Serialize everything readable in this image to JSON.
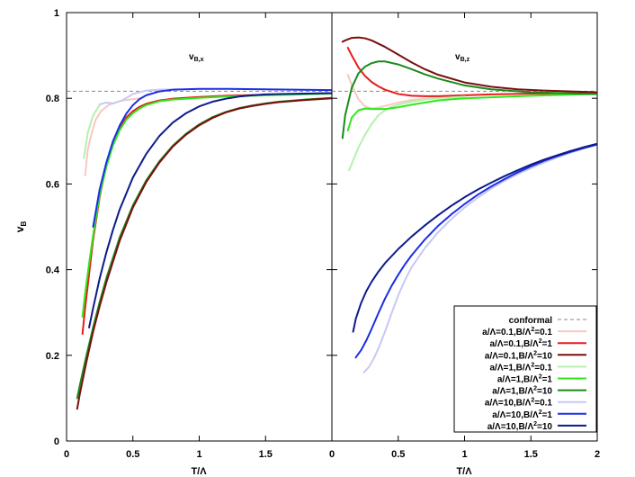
{
  "chart_data": {
    "type": "line",
    "ylabel": "v",
    "ylabel_sub": "B",
    "ylim": [
      0,
      1
    ],
    "yticks": [
      0,
      0.2,
      0.4,
      0.6,
      0.8,
      1
    ],
    "ytick_labels": [
      "0",
      "0.2",
      "0.4",
      "0.6",
      "0.8",
      "1"
    ],
    "conformal_value": 0.8165,
    "legend_position": "bottom-right of right panel",
    "legend": [
      {
        "key": "conformal",
        "label": "conformal",
        "color": "#888888",
        "dashed": true
      },
      {
        "key": "s1",
        "pre": "a/Λ=0.1,B/Λ",
        "post": "=0.1",
        "color": "#f7c8c0"
      },
      {
        "key": "s2",
        "pre": "a/Λ=0.1,B/Λ",
        "post": "=1",
        "color": "#e81c1c"
      },
      {
        "key": "s3",
        "pre": "a/Λ=0.1,B/Λ",
        "post": "=10",
        "color": "#7a0e0e"
      },
      {
        "key": "s4",
        "pre": "a/Λ=1,B/Λ",
        "post": "=0.1",
        "color": "#b6f0b0"
      },
      {
        "key": "s5",
        "pre": "a/Λ=1,B/Λ",
        "post": "=1",
        "color": "#2ee81c"
      },
      {
        "key": "s6",
        "pre": "a/Λ=1,B/Λ",
        "post": "=10",
        "color": "#1a8a1a"
      },
      {
        "key": "s7",
        "pre": "a/Λ=10,B/Λ",
        "post": "=0.1",
        "color": "#c8c8f4"
      },
      {
        "key": "s8",
        "pre": "a/Λ=10,B/Λ",
        "post": "=1",
        "color": "#1c2ee8"
      },
      {
        "key": "s9",
        "pre": "a/Λ=10,B/Λ",
        "post": "=10",
        "color": "#0e1a8a"
      }
    ],
    "panels": [
      {
        "id": "left",
        "title": "v",
        "title_sub": "B,x",
        "xlabel": "T/Λ",
        "xlim": [
          0,
          2
        ],
        "xticks": [
          0,
          0.5,
          1,
          1.5
        ],
        "xtick_labels": [
          "0",
          "0.5",
          "1",
          "1.5"
        ],
        "series": [
          {
            "key": "s1",
            "x": [
              0.14,
              0.16,
              0.19,
              0.22,
              0.26,
              0.32,
              0.42,
              0.55
            ],
            "y": [
              0.62,
              0.68,
              0.72,
              0.75,
              0.77,
              0.785,
              0.795,
              0.8
            ]
          },
          {
            "key": "s2",
            "x": [
              0.12,
              0.14,
              0.17,
              0.2,
              0.25,
              0.3,
              0.35,
              0.4,
              0.45,
              0.5,
              0.55,
              0.6,
              0.7,
              0.8,
              1.0,
              1.2,
              1.5,
              2.0
            ],
            "y": [
              0.25,
              0.31,
              0.39,
              0.47,
              0.57,
              0.645,
              0.695,
              0.73,
              0.755,
              0.77,
              0.78,
              0.787,
              0.795,
              0.799,
              0.803,
              0.806,
              0.808,
              0.812
            ]
          },
          {
            "key": "s4",
            "x": [
              0.13,
              0.16,
              0.2,
              0.25
            ],
            "y": [
              0.66,
              0.72,
              0.76,
              0.785
            ]
          },
          {
            "key": "s5",
            "x": [
              0.12,
              0.14,
              0.17,
              0.2,
              0.25,
              0.3,
              0.35,
              0.4,
              0.45,
              0.5,
              0.55,
              0.6,
              0.7,
              0.8,
              1.0,
              1.2,
              1.5,
              2.0
            ],
            "y": [
              0.29,
              0.345,
              0.415,
              0.48,
              0.575,
              0.64,
              0.69,
              0.725,
              0.75,
              0.765,
              0.776,
              0.784,
              0.793,
              0.797,
              0.801,
              0.804,
              0.807,
              0.811
            ]
          },
          {
            "key": "s6",
            "x": [
              0.08,
              0.1,
              0.15,
              0.2,
              0.25,
              0.3,
              0.4,
              0.5,
              0.6,
              0.7,
              0.8,
              0.9,
              1.0,
              1.1,
              1.2,
              1.3,
              1.4,
              1.5,
              1.6,
              1.8,
              2.0
            ],
            "y": [
              0.1,
              0.13,
              0.2,
              0.265,
              0.325,
              0.38,
              0.475,
              0.55,
              0.608,
              0.653,
              0.689,
              0.717,
              0.739,
              0.756,
              0.768,
              0.777,
              0.783,
              0.788,
              0.792,
              0.797,
              0.801
            ]
          },
          {
            "key": "s3",
            "x": [
              0.08,
              0.1,
              0.15,
              0.2,
              0.25,
              0.3,
              0.4,
              0.5,
              0.6,
              0.7,
              0.8,
              0.9,
              1.0,
              1.1,
              1.2,
              1.3,
              1.4,
              1.5,
              1.6,
              1.8,
              2.0
            ],
            "y": [
              0.075,
              0.11,
              0.185,
              0.255,
              0.315,
              0.37,
              0.467,
              0.545,
              0.604,
              0.65,
              0.687,
              0.715,
              0.737,
              0.754,
              0.767,
              0.776,
              0.782,
              0.787,
              0.791,
              0.796,
              0.8
            ]
          },
          {
            "key": "s7",
            "x": [
              0.25,
              0.3,
              0.35,
              0.42,
              0.5,
              0.6,
              0.7,
              0.85
            ],
            "y": [
              0.786,
              0.79,
              0.788,
              0.795,
              0.81,
              0.818,
              0.82,
              0.821
            ]
          },
          {
            "key": "s8",
            "x": [
              0.2,
              0.25,
              0.3,
              0.35,
              0.4,
              0.45,
              0.5,
              0.55,
              0.6,
              0.7,
              0.8,
              1.0,
              1.2,
              1.5,
              2.0
            ],
            "y": [
              0.5,
              0.588,
              0.65,
              0.7,
              0.736,
              0.764,
              0.784,
              0.798,
              0.807,
              0.816,
              0.82,
              0.822,
              0.822,
              0.821,
              0.819
            ]
          },
          {
            "key": "s9",
            "x": [
              0.17,
              0.2,
              0.25,
              0.3,
              0.35,
              0.4,
              0.5,
              0.6,
              0.7,
              0.8,
              0.9,
              1.0,
              1.1,
              1.2,
              1.3,
              1.4,
              1.5,
              1.6,
              1.8,
              2.0
            ],
            "y": [
              0.265,
              0.31,
              0.38,
              0.44,
              0.493,
              0.54,
              0.615,
              0.67,
              0.712,
              0.743,
              0.765,
              0.781,
              0.792,
              0.799,
              0.804,
              0.807,
              0.809,
              0.81,
              0.811,
              0.812
            ]
          }
        ]
      },
      {
        "id": "right",
        "title": "v",
        "title_sub": "B,z",
        "xlabel": "T/Λ",
        "xlim": [
          0,
          2
        ],
        "xticks": [
          0,
          0.5,
          1,
          1.5,
          2
        ],
        "xtick_labels": [
          "0",
          "0.5",
          "1",
          "1.5",
          "2"
        ],
        "series": [
          {
            "key": "s1",
            "x": [
              0.12,
              0.15,
              0.2,
              0.25,
              0.3,
              0.35,
              0.4,
              0.5,
              0.6,
              0.8,
              1.0
            ],
            "y": [
              0.855,
              0.83,
              0.798,
              0.781,
              0.776,
              0.778,
              0.782,
              0.79,
              0.796,
              0.802,
              0.806
            ]
          },
          {
            "key": "s2",
            "x": [
              0.12,
              0.15,
              0.2,
              0.25,
              0.3,
              0.35,
              0.4,
              0.5,
              0.6,
              0.7,
              0.8,
              1.0,
              1.2,
              1.5,
              2.0
            ],
            "y": [
              0.918,
              0.9,
              0.872,
              0.852,
              0.838,
              0.828,
              0.82,
              0.81,
              0.806,
              0.805,
              0.805,
              0.807,
              0.809,
              0.811,
              0.812
            ]
          },
          {
            "key": "s3",
            "x": [
              0.08,
              0.1,
              0.15,
              0.2,
              0.25,
              0.3,
              0.4,
              0.5,
              0.6,
              0.7,
              0.8,
              1.0,
              1.2,
              1.4,
              1.6,
              2.0
            ],
            "y": [
              0.932,
              0.935,
              0.941,
              0.942,
              0.94,
              0.935,
              0.92,
              0.902,
              0.884,
              0.868,
              0.855,
              0.837,
              0.827,
              0.821,
              0.818,
              0.814
            ]
          },
          {
            "key": "s4",
            "x": [
              0.13,
              0.16,
              0.2,
              0.25,
              0.3,
              0.35,
              0.4,
              0.45,
              0.5,
              0.6,
              0.7,
              0.8,
              1.0
            ],
            "y": [
              0.632,
              0.655,
              0.685,
              0.715,
              0.74,
              0.76,
              0.772,
              0.78,
              0.785,
              0.792,
              0.797,
              0.8,
              0.804
            ]
          },
          {
            "key": "s5",
            "x": [
              0.12,
              0.15,
              0.2,
              0.25,
              0.3,
              0.4,
              0.5,
              0.6,
              0.8,
              1.0,
              1.5,
              2.0
            ],
            "y": [
              0.725,
              0.755,
              0.772,
              0.776,
              0.775,
              0.775,
              0.779,
              0.785,
              0.795,
              0.8,
              0.806,
              0.81
            ]
          },
          {
            "key": "s6",
            "x": [
              0.08,
              0.1,
              0.15,
              0.2,
              0.25,
              0.3,
              0.35,
              0.4,
              0.5,
              0.6,
              0.7,
              0.8,
              1.0,
              1.2,
              1.5,
              2.0
            ],
            "y": [
              0.707,
              0.76,
              0.825,
              0.858,
              0.874,
              0.882,
              0.886,
              0.886,
              0.879,
              0.868,
              0.856,
              0.846,
              0.83,
              0.821,
              0.814,
              0.81
            ]
          },
          {
            "key": "s7",
            "x": [
              0.24,
              0.28,
              0.32,
              0.36,
              0.4,
              0.45,
              0.5,
              0.55,
              0.6,
              0.7,
              0.8,
              0.9,
              1.0,
              1.1,
              1.2,
              1.3,
              1.4,
              1.5,
              1.6,
              1.7,
              1.8,
              1.9,
              2.0
            ],
            "y": [
              0.16,
              0.173,
              0.195,
              0.223,
              0.255,
              0.298,
              0.34,
              0.375,
              0.405,
              0.45,
              0.487,
              0.518,
              0.545,
              0.568,
              0.589,
              0.607,
              0.623,
              0.637,
              0.65,
              0.662,
              0.673,
              0.683,
              0.692
            ]
          },
          {
            "key": "s8",
            "x": [
              0.18,
              0.22,
              0.26,
              0.3,
              0.35,
              0.4,
              0.45,
              0.5,
              0.55,
              0.6,
              0.7,
              0.8,
              0.9,
              1.0,
              1.1,
              1.2,
              1.3,
              1.4,
              1.5,
              1.6,
              1.7,
              1.8,
              1.9,
              2.0
            ],
            "y": [
              0.195,
              0.212,
              0.235,
              0.262,
              0.298,
              0.332,
              0.362,
              0.388,
              0.412,
              0.433,
              0.47,
              0.502,
              0.529,
              0.553,
              0.575,
              0.594,
              0.611,
              0.627,
              0.641,
              0.654,
              0.665,
              0.675,
              0.684,
              0.692
            ]
          },
          {
            "key": "s9",
            "x": [
              0.16,
              0.18,
              0.22,
              0.26,
              0.3,
              0.35,
              0.4,
              0.5,
              0.6,
              0.7,
              0.8,
              0.9,
              1.0,
              1.1,
              1.2,
              1.3,
              1.4,
              1.5,
              1.6,
              1.7,
              1.8,
              1.9,
              2.0
            ],
            "y": [
              0.255,
              0.285,
              0.322,
              0.35,
              0.372,
              0.395,
              0.415,
              0.448,
              0.477,
              0.503,
              0.527,
              0.549,
              0.569,
              0.587,
              0.603,
              0.618,
              0.632,
              0.645,
              0.657,
              0.667,
              0.677,
              0.686,
              0.694
            ]
          }
        ]
      }
    ]
  }
}
